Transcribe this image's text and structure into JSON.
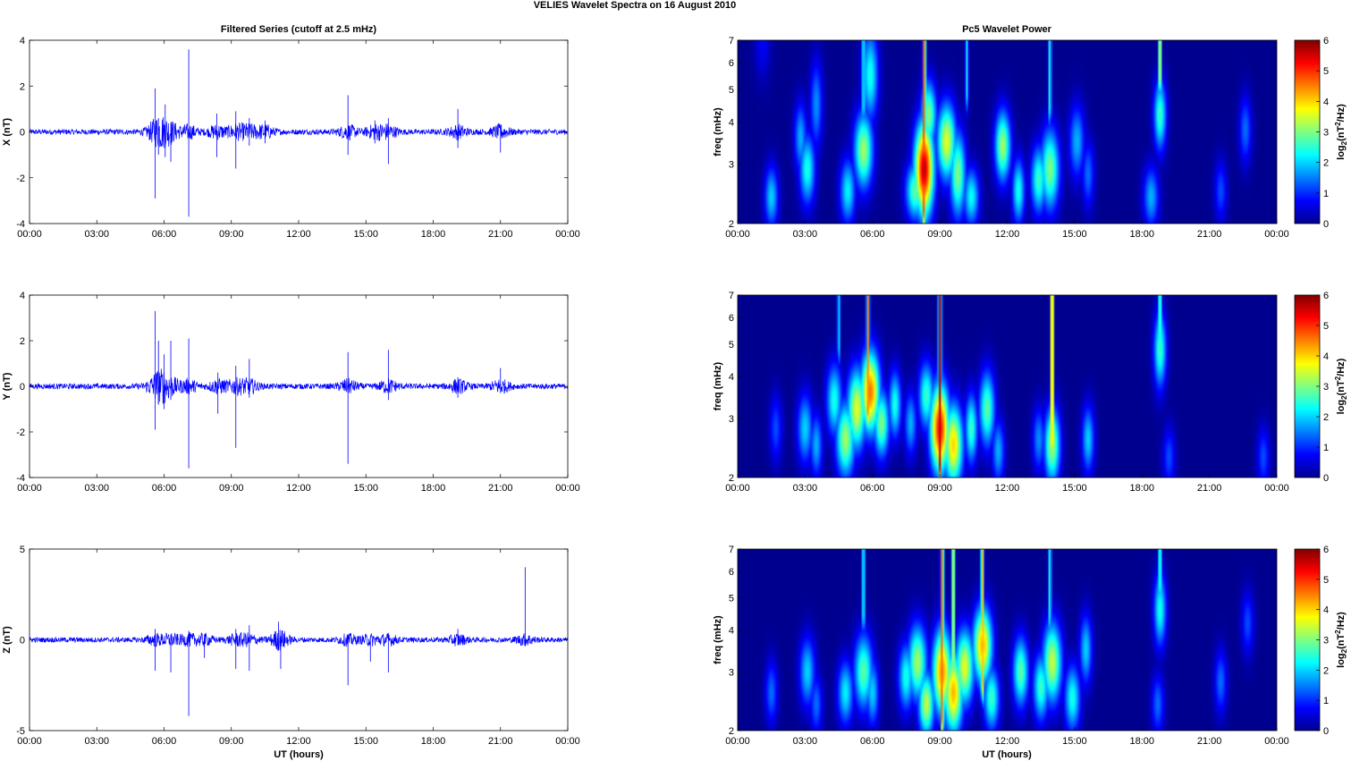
{
  "figure": {
    "title": "VELIES Wavelet Spectra on 16 August    2010",
    "left_column_title": "Filtered Series (cutoff at 2.5 mHz)",
    "right_column_title": "Pc5 Wavelet Power",
    "xlabel": "UT (hours)"
  },
  "colors": {
    "series_line": "#0000ff",
    "background_power": "#00008f"
  },
  "chart_data": [
    {
      "type": "line",
      "name": "X (nT)",
      "ylabel": "X (nT)",
      "xlim": [
        0,
        24
      ],
      "ylim": [
        -4,
        4
      ],
      "yticks": [
        -4,
        -2,
        0,
        2,
        4
      ],
      "xtick_labels": [
        "00:00",
        "03:00",
        "06:00",
        "09:00",
        "12:00",
        "15:00",
        "18:00",
        "21:00",
        "00:00"
      ],
      "noise_amplitude": 0.12,
      "spikes": [
        [
          5.6,
          1.9,
          -2.9
        ],
        [
          5.75,
          0.6,
          -1.0
        ],
        [
          6.05,
          1.2,
          -1.1
        ],
        [
          6.3,
          0.4,
          -1.3
        ],
        [
          7.1,
          3.6,
          -3.7
        ],
        [
          8.35,
          0.8,
          -1.1
        ],
        [
          9.2,
          0.9,
          -1.6
        ],
        [
          9.8,
          0.6,
          -0.6
        ],
        [
          10.5,
          0.5,
          -0.5
        ],
        [
          14.2,
          1.6,
          -1.0
        ],
        [
          15.4,
          0.5,
          -0.5
        ],
        [
          16.0,
          0.6,
          -1.4
        ],
        [
          19.1,
          1.0,
          -0.7
        ],
        [
          21.0,
          0.3,
          -0.9
        ]
      ]
    },
    {
      "type": "line",
      "name": "Y (nT)",
      "ylabel": "Y (nT)",
      "xlim": [
        0,
        24
      ],
      "ylim": [
        -4,
        4
      ],
      "yticks": [
        -4,
        -2,
        0,
        2,
        4
      ],
      "xtick_labels": [
        "00:00",
        "03:00",
        "06:00",
        "09:00",
        "12:00",
        "15:00",
        "18:00",
        "21:00",
        "00:00"
      ],
      "noise_amplitude": 0.12,
      "spikes": [
        [
          5.6,
          3.3,
          -1.9
        ],
        [
          5.75,
          2.0,
          -0.8
        ],
        [
          6.0,
          1.4,
          -1.0
        ],
        [
          6.3,
          2.0,
          -0.6
        ],
        [
          7.1,
          2.1,
          -3.6
        ],
        [
          8.4,
          0.6,
          -1.2
        ],
        [
          9.2,
          0.9,
          -2.7
        ],
        [
          9.8,
          1.2,
          -0.5
        ],
        [
          14.2,
          1.5,
          -3.4
        ],
        [
          16.0,
          1.6,
          -0.6
        ],
        [
          19.1,
          0.4,
          -0.5
        ],
        [
          21.0,
          0.8,
          -0.3
        ]
      ]
    },
    {
      "type": "line",
      "name": "Z (nT)",
      "ylabel": "Z (nT)",
      "xlim": [
        0,
        24
      ],
      "ylim": [
        -5,
        5
      ],
      "yticks": [
        -5,
        0,
        5
      ],
      "xtick_labels": [
        "00:00",
        "03:00",
        "06:00",
        "09:00",
        "12:00",
        "15:00",
        "18:00",
        "21:00",
        "00:00"
      ],
      "noise_amplitude": 0.14,
      "spikes": [
        [
          5.6,
          0.6,
          -1.7
        ],
        [
          6.3,
          0.3,
          -1.8
        ],
        [
          7.1,
          0.5,
          -4.2
        ],
        [
          7.8,
          0.3,
          -1.0
        ],
        [
          9.2,
          0.6,
          -1.6
        ],
        [
          9.8,
          0.8,
          -1.7
        ],
        [
          11.1,
          1.0,
          -0.6
        ],
        [
          11.2,
          0.2,
          -1.6
        ],
        [
          14.2,
          0.3,
          -2.5
        ],
        [
          15.2,
          0.2,
          -1.2
        ],
        [
          16.0,
          0.3,
          -1.8
        ],
        [
          19.1,
          0.6,
          -0.3
        ],
        [
          22.1,
          4.0,
          -0.2
        ]
      ]
    },
    {
      "type": "heatmap",
      "name": "X wavelet power",
      "ylabel": "freq (mHz)",
      "cbar_label": "log2(nT^2/Hz)",
      "xlim": [
        0,
        24
      ],
      "ylim": [
        2,
        7
      ],
      "yscale": "log",
      "yticks": [
        2,
        3,
        4,
        5,
        6,
        7
      ],
      "clim": [
        0,
        6
      ],
      "cbar_ticks": [
        0,
        1,
        2,
        3,
        4,
        5,
        6
      ],
      "xtick_labels": [
        "00:00",
        "03:00",
        "06:00",
        "09:00",
        "12:00",
        "15:00",
        "18:00",
        "21:00",
        "00:00"
      ],
      "blobs": [
        [
          1.1,
          6.8,
          2.6,
          0.25,
          0.7
        ],
        [
          1.5,
          2.4,
          2.3,
          0.22,
          2.0
        ],
        [
          2.8,
          3.6,
          2.6,
          0.2,
          1.8
        ],
        [
          3.1,
          2.9,
          2.6,
          0.25,
          2.4
        ],
        [
          3.5,
          4.5,
          3.3,
          0.2,
          1.6
        ],
        [
          4.9,
          2.5,
          2.4,
          0.25,
          2.2
        ],
        [
          5.6,
          3.3,
          2.8,
          0.3,
          3.2
        ],
        [
          5.9,
          5.5,
          3.4,
          0.25,
          2.4
        ],
        [
          7.9,
          2.5,
          2.2,
          0.3,
          2.8
        ],
        [
          8.3,
          2.9,
          3.5,
          0.3,
          5.6
        ],
        [
          8.5,
          4.2,
          2.5,
          0.25,
          3.0
        ],
        [
          9.3,
          3.5,
          2.8,
          0.3,
          3.6
        ],
        [
          9.8,
          2.8,
          3.2,
          0.25,
          3.0
        ],
        [
          10.4,
          2.4,
          2.2,
          0.25,
          2.3
        ],
        [
          11.8,
          3.4,
          2.6,
          0.25,
          3.2
        ],
        [
          12.5,
          2.5,
          2.4,
          0.2,
          2.4
        ],
        [
          13.4,
          2.7,
          2.5,
          0.25,
          2.6
        ],
        [
          13.9,
          2.9,
          3.0,
          0.3,
          3.0
        ],
        [
          15.1,
          3.5,
          2.7,
          0.25,
          1.8
        ],
        [
          15.6,
          2.8,
          2.5,
          0.2,
          1.4
        ],
        [
          18.4,
          2.4,
          2.3,
          0.25,
          1.8
        ],
        [
          18.8,
          4.2,
          2.6,
          0.2,
          2.6
        ],
        [
          21.5,
          2.5,
          2.3,
          0.2,
          1.2
        ],
        [
          22.6,
          3.8,
          2.5,
          0.2,
          1.4
        ]
      ],
      "ridges": [
        [
          5.6,
          4.5,
          2.6
        ],
        [
          8.3,
          2.2,
          5.2
        ],
        [
          10.2,
          5.0,
          2.4
        ],
        [
          13.9,
          4.5,
          2.6
        ],
        [
          18.8,
          5.5,
          4.0
        ]
      ]
    },
    {
      "type": "heatmap",
      "name": "Y wavelet power",
      "ylabel": "freq (mHz)",
      "cbar_label": "log2(nT^2/Hz)",
      "xlim": [
        0,
        24
      ],
      "ylim": [
        2,
        7
      ],
      "yscale": "log",
      "yticks": [
        2,
        3,
        4,
        5,
        6,
        7
      ],
      "clim": [
        0,
        6
      ],
      "cbar_ticks": [
        0,
        1,
        2,
        3,
        4,
        5,
        6
      ],
      "xtick_labels": [
        "00:00",
        "03:00",
        "06:00",
        "09:00",
        "12:00",
        "15:00",
        "18:00",
        "21:00",
        "00:00"
      ],
      "blobs": [
        [
          1.7,
          2.8,
          2.5,
          0.2,
          1.2
        ],
        [
          3.0,
          2.8,
          2.6,
          0.25,
          2.0
        ],
        [
          3.5,
          2.5,
          2.4,
          0.2,
          1.8
        ],
        [
          4.3,
          3.4,
          2.7,
          0.25,
          2.4
        ],
        [
          4.8,
          2.6,
          2.8,
          0.3,
          3.2
        ],
        [
          5.3,
          3.2,
          3.0,
          0.3,
          3.6
        ],
        [
          5.9,
          3.6,
          3.0,
          0.3,
          4.6
        ],
        [
          6.4,
          2.9,
          2.5,
          0.25,
          3.0
        ],
        [
          7.0,
          3.3,
          2.5,
          0.2,
          2.4
        ],
        [
          7.7,
          2.9,
          2.4,
          0.2,
          1.8
        ],
        [
          8.4,
          3.5,
          2.5,
          0.25,
          2.6
        ],
        [
          9.0,
          2.8,
          3.3,
          0.3,
          5.2
        ],
        [
          9.6,
          2.5,
          3.0,
          0.3,
          4.0
        ],
        [
          10.4,
          2.8,
          2.6,
          0.2,
          2.6
        ],
        [
          11.1,
          3.2,
          2.8,
          0.25,
          2.8
        ],
        [
          11.6,
          2.4,
          2.4,
          0.2,
          1.8
        ],
        [
          13.4,
          2.6,
          2.4,
          0.2,
          1.6
        ],
        [
          14.0,
          2.5,
          2.8,
          0.25,
          3.2
        ],
        [
          15.6,
          2.6,
          2.5,
          0.2,
          2.0
        ],
        [
          18.8,
          4.8,
          2.8,
          0.2,
          2.6
        ],
        [
          19.2,
          2.3,
          2.3,
          0.2,
          1.2
        ],
        [
          23.4,
          2.3,
          2.3,
          0.2,
          1.2
        ]
      ],
      "ridges": [
        [
          5.8,
          3.2,
          4.4
        ],
        [
          9.0,
          2.2,
          5.6
        ],
        [
          14.0,
          2.6,
          5.0
        ],
        [
          18.8,
          5.2,
          3.2
        ],
        [
          4.5,
          5.0,
          2.2
        ]
      ]
    },
    {
      "type": "heatmap",
      "name": "Z wavelet power",
      "ylabel": "freq (mHz)",
      "cbar_label": "log2(nT^2/Hz)",
      "xlim": [
        0,
        24
      ],
      "ylim": [
        2,
        7
      ],
      "yscale": "log",
      "yticks": [
        2,
        3,
        4,
        5,
        6,
        7
      ],
      "clim": [
        0,
        6
      ],
      "cbar_ticks": [
        0,
        1,
        2,
        3,
        4,
        5,
        6
      ],
      "xtick_labels": [
        "00:00",
        "03:00",
        "06:00",
        "09:00",
        "12:00",
        "15:00",
        "18:00",
        "21:00",
        "00:00"
      ],
      "blobs": [
        [
          1.5,
          2.6,
          2.4,
          0.2,
          1.4
        ],
        [
          3.1,
          3.0,
          2.6,
          0.25,
          2.0
        ],
        [
          3.5,
          2.4,
          2.3,
          0.2,
          1.4
        ],
        [
          4.8,
          2.6,
          2.4,
          0.25,
          2.2
        ],
        [
          5.6,
          3.0,
          2.8,
          0.3,
          2.8
        ],
        [
          6.0,
          2.6,
          2.5,
          0.2,
          2.0
        ],
        [
          7.5,
          2.9,
          2.5,
          0.25,
          2.4
        ],
        [
          8.0,
          3.2,
          2.8,
          0.3,
          3.2
        ],
        [
          8.4,
          2.4,
          2.4,
          0.25,
          3.4
        ],
        [
          9.1,
          3.0,
          3.2,
          0.3,
          4.4
        ],
        [
          9.6,
          2.6,
          3.0,
          0.3,
          4.2
        ],
        [
          10.1,
          3.1,
          2.8,
          0.3,
          3.6
        ],
        [
          10.9,
          3.6,
          2.8,
          0.3,
          4.2
        ],
        [
          11.3,
          2.5,
          2.4,
          0.25,
          2.6
        ],
        [
          12.6,
          3.0,
          2.6,
          0.25,
          2.8
        ],
        [
          13.5,
          2.7,
          2.5,
          0.25,
          2.6
        ],
        [
          14.0,
          3.2,
          3.0,
          0.3,
          3.4
        ],
        [
          14.9,
          2.5,
          2.5,
          0.25,
          2.4
        ],
        [
          15.5,
          3.5,
          2.6,
          0.2,
          2.0
        ],
        [
          18.7,
          2.4,
          2.3,
          0.2,
          1.4
        ],
        [
          18.8,
          4.6,
          2.7,
          0.2,
          2.4
        ],
        [
          21.5,
          2.8,
          2.4,
          0.2,
          1.4
        ],
        [
          22.7,
          4.2,
          2.4,
          0.2,
          1.2
        ]
      ],
      "ridges": [
        [
          5.6,
          4.5,
          2.6
        ],
        [
          9.1,
          2.2,
          5.0
        ],
        [
          9.6,
          3.0,
          4.0
        ],
        [
          10.9,
          2.8,
          4.4
        ],
        [
          13.9,
          4.5,
          2.6
        ],
        [
          18.8,
          5.5,
          3.0
        ]
      ]
    }
  ]
}
